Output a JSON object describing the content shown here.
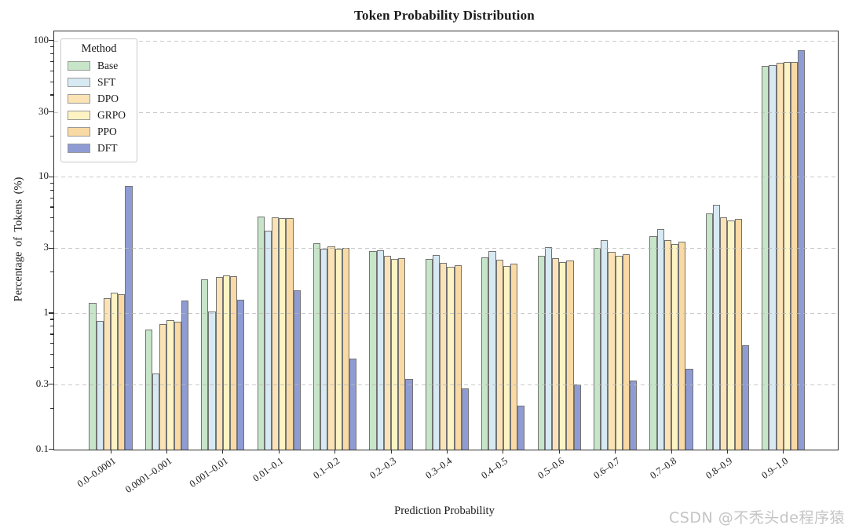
{
  "chart_data": {
    "type": "bar",
    "title": "Token Probability Distribution",
    "xlabel": "Prediction Probability",
    "ylabel": "Percentage of Tokens (%)",
    "legend_title": "Method",
    "legend_position": "upper-left",
    "yscale": "log",
    "ylim": [
      0.1,
      118
    ],
    "grid": "horizontal-dashed",
    "ytick_labels": [
      "100",
      "30",
      "10",
      "3",
      "1",
      "0.3",
      "0.1"
    ],
    "ytick_values": [
      100,
      30,
      10,
      3,
      1,
      0.3,
      0.1
    ],
    "gridline_values": [
      100,
      30,
      10,
      3,
      1,
      0.3
    ],
    "categories": [
      "0.0–0.0001",
      "0.0001–0.001",
      "0.001–0.01",
      "0.01–0.1",
      "0.1–0.2",
      "0.2–0.3",
      "0.3–0.4",
      "0.4–0.5",
      "0.5–0.6",
      "0.6–0.7",
      "0.7–0.8",
      "0.8–0.9",
      "0.9–1.0"
    ],
    "series": [
      {
        "name": "Base",
        "color": "#c7e5c8",
        "values": [
          1.18,
          0.76,
          1.76,
          5.1,
          3.24,
          2.85,
          2.48,
          2.56,
          2.63,
          3.0,
          3.65,
          5.4,
          65.0
        ]
      },
      {
        "name": "SFT",
        "color": "#d7e9f2",
        "values": [
          0.88,
          0.36,
          1.03,
          4.0,
          2.97,
          2.9,
          2.68,
          2.86,
          3.03,
          3.43,
          4.15,
          6.2,
          65.8
        ]
      },
      {
        "name": "DPO",
        "color": "#fbe3b5",
        "values": [
          1.29,
          0.83,
          1.84,
          5.05,
          3.08,
          2.62,
          2.34,
          2.45,
          2.54,
          2.81,
          3.43,
          5.05,
          68.5
        ]
      },
      {
        "name": "GRPO",
        "color": "#fdf3c3",
        "values": [
          1.42,
          0.89,
          1.9,
          5.0,
          2.95,
          2.48,
          2.19,
          2.22,
          2.37,
          2.62,
          3.2,
          4.8,
          70.0
        ]
      },
      {
        "name": "PPO",
        "color": "#f9d9a4",
        "values": [
          1.38,
          0.86,
          1.86,
          5.0,
          3.0,
          2.54,
          2.24,
          2.29,
          2.43,
          2.71,
          3.32,
          4.9,
          69.4
        ]
      },
      {
        "name": "DFT",
        "color": "#8f9cd4",
        "values": [
          8.6,
          1.23,
          1.26,
          1.46,
          0.46,
          0.33,
          0.28,
          0.21,
          0.3,
          0.32,
          0.39,
          0.58,
          85.6
        ]
      }
    ],
    "bar_edge_color": "#737373"
  },
  "watermark": {
    "text": "CSDN @不秃头de程序猿",
    "color": "#c4c4c4"
  }
}
